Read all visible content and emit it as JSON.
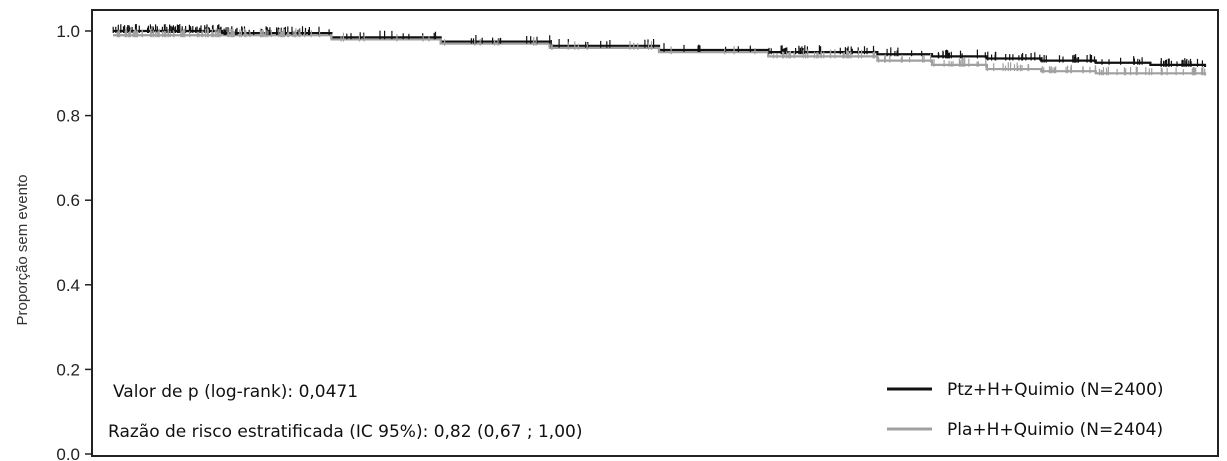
{
  "chart_data": {
    "type": "line",
    "title": "",
    "xlabel": "",
    "ylabel": "Proporção sem evento",
    "ylim": [
      0,
      1.05
    ],
    "yticks": [
      0.0,
      0.2,
      0.4,
      0.6,
      0.8,
      1.0
    ],
    "ytick_labels": [
      "0.0",
      "0.2",
      "0.4",
      "0.6",
      "0.8",
      "1.0"
    ],
    "xlim": [
      0,
      100
    ],
    "x_note": "follow-up progression (no x tick labels shown)",
    "grid": false,
    "legend_position": "bottom-right",
    "series": [
      {
        "name": "Ptz+H+Quimio (N=2400)",
        "color": "#111111",
        "x": [
          0,
          10,
          20,
          30,
          40,
          50,
          60,
          70,
          75,
          80,
          85,
          90,
          95,
          100
        ],
        "y": [
          1.0,
          0.995,
          0.985,
          0.975,
          0.965,
          0.955,
          0.95,
          0.945,
          0.94,
          0.935,
          0.93,
          0.925,
          0.92,
          0.915
        ]
      },
      {
        "name": "Pla+H+Quimio (N=2404)",
        "color": "#a0a0a0",
        "x": [
          0,
          10,
          20,
          30,
          40,
          50,
          60,
          70,
          75,
          80,
          85,
          90,
          95,
          100
        ],
        "y": [
          0.99,
          0.99,
          0.98,
          0.97,
          0.96,
          0.95,
          0.94,
          0.93,
          0.92,
          0.91,
          0.905,
          0.9,
          0.9,
          0.895
        ]
      }
    ],
    "annotations": [
      "Valor de p (log-rank): 0,0471",
      "Razão de risco estratificada (IC 95%): 0,82 (0,67 ; 1,00)"
    ]
  }
}
